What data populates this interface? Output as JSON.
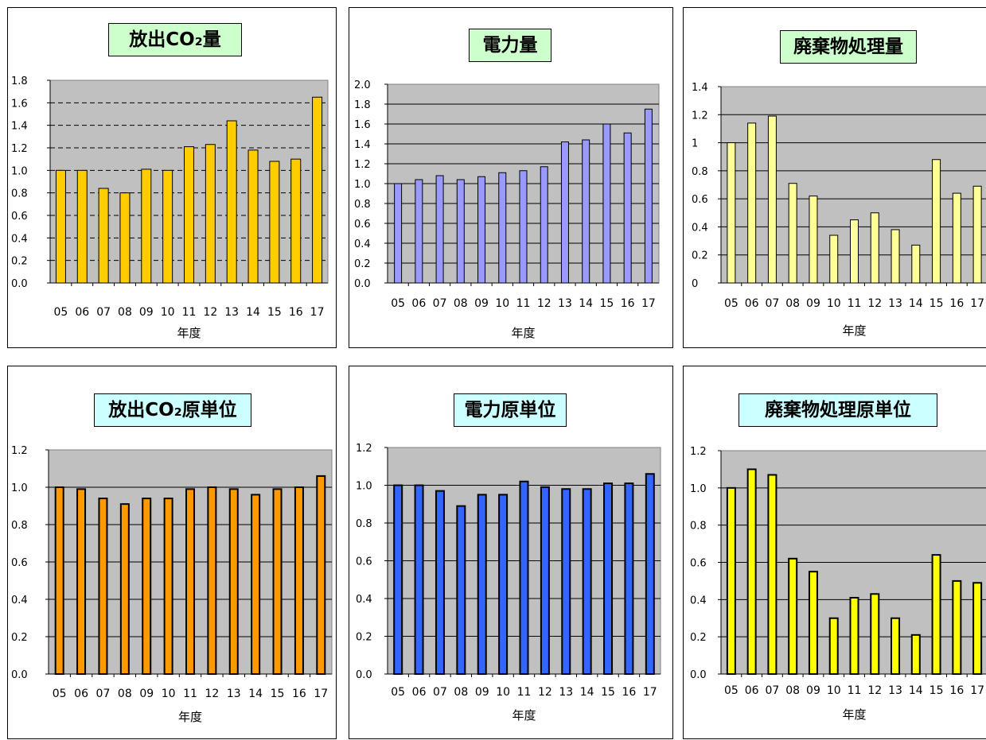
{
  "chart_data": [
    {
      "type": "bar",
      "title": "放出CO₂量",
      "title_bg": "#ccffcc",
      "bar_color": "#ffcc00",
      "plot_bg": "#c0c0c0",
      "xlabel": "年度",
      "ylabel": "",
      "categories": [
        "05",
        "06",
        "07",
        "08",
        "09",
        "10",
        "11",
        "12",
        "13",
        "14",
        "15",
        "16",
        "17"
      ],
      "values": [
        1.0,
        1.0,
        0.84,
        0.8,
        1.01,
        1.0,
        1.21,
        1.23,
        1.44,
        1.18,
        1.08,
        1.1,
        1.65
      ],
      "ylim": [
        0,
        1.8
      ],
      "yticks": [
        "0.0",
        "0.2",
        "0.4",
        "0.6",
        "0.8",
        "1.0",
        "1.2",
        "1.4",
        "1.6",
        "1.8"
      ],
      "grid": "dashed"
    },
    {
      "type": "bar",
      "title": "電力量",
      "title_bg": "#ccffcc",
      "bar_color": "#9999ff",
      "plot_bg": "#c0c0c0",
      "xlabel": "年度",
      "ylabel": "",
      "categories": [
        "05",
        "06",
        "07",
        "08",
        "09",
        "10",
        "11",
        "12",
        "13",
        "14",
        "15",
        "16",
        "17"
      ],
      "values": [
        1.0,
        1.04,
        1.08,
        1.04,
        1.07,
        1.11,
        1.13,
        1.17,
        1.42,
        1.44,
        1.6,
        1.51,
        1.75
      ],
      "ylim": [
        0,
        2.0
      ],
      "yticks": [
        "0.0",
        "0.2",
        "0.4",
        "0.6",
        "0.8",
        "1.0",
        "1.2",
        "1.4",
        "1.6",
        "1.8",
        "2.0"
      ],
      "grid": "solid"
    },
    {
      "type": "bar",
      "title": "廃棄物処理量",
      "title_bg": "#ccffcc",
      "bar_color": "#ffff99",
      "plot_bg": "#c0c0c0",
      "xlabel": "年度",
      "ylabel": "",
      "categories": [
        "05",
        "06",
        "07",
        "08",
        "09",
        "10",
        "11",
        "12",
        "13",
        "14",
        "15",
        "16",
        "17"
      ],
      "values": [
        1.0,
        1.14,
        1.19,
        0.71,
        0.62,
        0.34,
        0.45,
        0.5,
        0.38,
        0.27,
        0.88,
        0.64,
        0.69
      ],
      "ylim": [
        0,
        1.4
      ],
      "yticks": [
        "0",
        "0.2",
        "0.4",
        "0.6",
        "0.8",
        "1",
        "1.2",
        "1.4"
      ],
      "grid": "solid"
    },
    {
      "type": "bar",
      "title": "放出CO₂原単位",
      "title_bg": "#ccffff",
      "bar_color": "#ff9900",
      "plot_bg": "#c0c0c0",
      "xlabel": "年度",
      "ylabel": "",
      "categories": [
        "05",
        "06",
        "07",
        "08",
        "09",
        "10",
        "11",
        "12",
        "13",
        "14",
        "15",
        "16",
        "17"
      ],
      "values": [
        1.0,
        0.99,
        0.94,
        0.91,
        0.94,
        0.94,
        0.99,
        1.0,
        0.99,
        0.96,
        0.99,
        1.0,
        1.06
      ],
      "ylim": [
        0,
        1.2
      ],
      "yticks": [
        "0.0",
        "0.2",
        "0.4",
        "0.6",
        "0.8",
        "1.0",
        "1.2"
      ],
      "grid": "solid"
    },
    {
      "type": "bar",
      "title": "電力原単位",
      "title_bg": "#ccffff",
      "bar_color": "#3366ff",
      "plot_bg": "#c0c0c0",
      "xlabel": "年度",
      "ylabel": "",
      "categories": [
        "05",
        "06",
        "07",
        "08",
        "09",
        "10",
        "11",
        "12",
        "13",
        "14",
        "15",
        "16",
        "17"
      ],
      "values": [
        1.0,
        1.0,
        0.97,
        0.89,
        0.95,
        0.95,
        1.02,
        0.99,
        0.98,
        0.98,
        1.01,
        1.01,
        1.06
      ],
      "ylim": [
        0,
        1.2
      ],
      "yticks": [
        "0.0",
        "0.2",
        "0.4",
        "0.6",
        "0.8",
        "1.0",
        "1.2"
      ],
      "grid": "solid"
    },
    {
      "type": "bar",
      "title": "廃棄物処理原単位",
      "title_bg": "#ccffff",
      "bar_color": "#ffff00",
      "plot_bg": "#c0c0c0",
      "xlabel": "年度",
      "ylabel": "",
      "categories": [
        "05",
        "06",
        "07",
        "08",
        "09",
        "10",
        "11",
        "12",
        "13",
        "14",
        "15",
        "16",
        "17"
      ],
      "values": [
        1.0,
        1.1,
        1.07,
        0.62,
        0.55,
        0.3,
        0.41,
        0.43,
        0.3,
        0.21,
        0.64,
        0.5,
        0.49
      ],
      "ylim": [
        0,
        1.2
      ],
      "yticks": [
        "0.0",
        "0.2",
        "0.4",
        "0.6",
        "0.8",
        "1.0",
        "1.2"
      ],
      "grid": "solid"
    }
  ]
}
